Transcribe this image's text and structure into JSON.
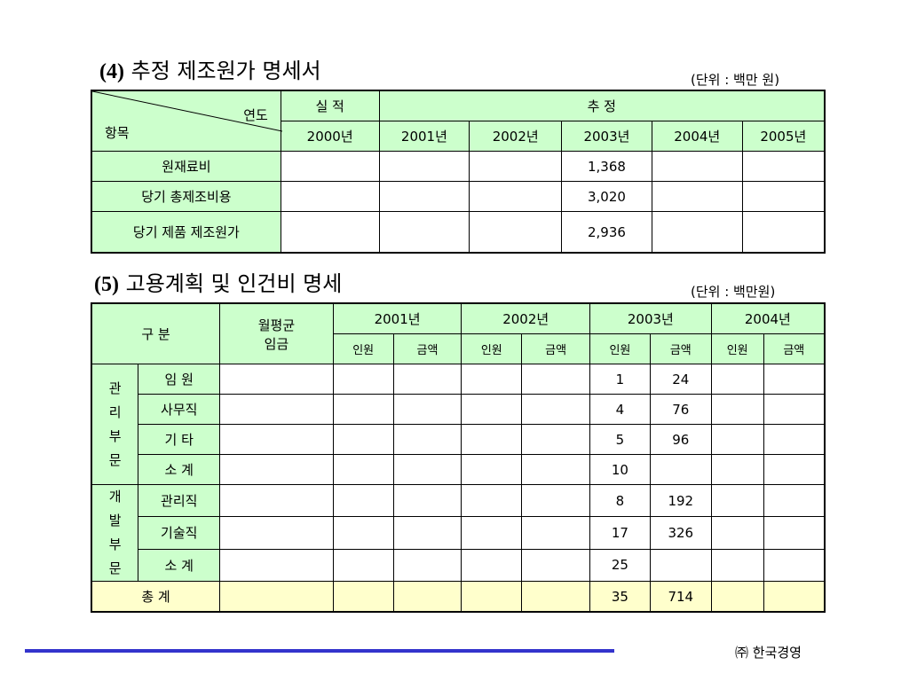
{
  "section4": {
    "num": "(4)",
    "title": "추정 제조원가 명세서",
    "unit": "(단위 : 백만 원)",
    "corner_top": "연도",
    "corner_bottom": "항목",
    "group_actual": "실 적",
    "group_estimate": "추 정",
    "years": [
      "2000년",
      "2001년",
      "2002년",
      "2003년",
      "2004년",
      "2005년"
    ],
    "rows": [
      {
        "label": "원재료비",
        "values": [
          "",
          "",
          "",
          "1,368",
          "",
          ""
        ]
      },
      {
        "label": "당기 총제조비용",
        "values": [
          "",
          "",
          "",
          "3,020",
          "",
          ""
        ]
      },
      {
        "label": "당기 제품 제조원가",
        "values": [
          "",
          "",
          "",
          "2,936",
          "",
          ""
        ]
      }
    ]
  },
  "section5": {
    "num": "(5)",
    "title": "고용계획 및 인건비 명세",
    "unit": "(단위 : 백만원)",
    "col_category": "구 분",
    "col_wage_line1": "월평균",
    "col_wage_line2": "임금",
    "years": [
      "2001년",
      "2002년",
      "2003년",
      "2004년"
    ],
    "sub_headcount": "인원",
    "sub_amount": "금액",
    "group_admin": [
      "관",
      "리",
      "부",
      "문"
    ],
    "group_dev": [
      "개",
      "발",
      "부",
      "문"
    ],
    "rows": [
      {
        "label": "임 원",
        "wage": "",
        "cells": [
          "",
          "",
          "",
          "",
          "1",
          "24",
          "",
          ""
        ]
      },
      {
        "label": "사무직",
        "wage": "",
        "cells": [
          "",
          "",
          "",
          "",
          "4",
          "76",
          "",
          ""
        ]
      },
      {
        "label": "기 타",
        "wage": "",
        "cells": [
          "",
          "",
          "",
          "",
          "5",
          "96",
          "",
          ""
        ]
      },
      {
        "label": "소 계",
        "wage": "",
        "cells": [
          "",
          "",
          "",
          "",
          "10",
          "",
          "",
          ""
        ]
      },
      {
        "label": "관리직",
        "wage": "",
        "cells": [
          "",
          "",
          "",
          "",
          "8",
          "192",
          "",
          ""
        ]
      },
      {
        "label": "기술직",
        "wage": "",
        "cells": [
          "",
          "",
          "",
          "",
          "17",
          "326",
          "",
          ""
        ]
      },
      {
        "label": "소 계",
        "wage": "",
        "cells": [
          "",
          "",
          "",
          "",
          "25",
          "",
          "",
          ""
        ]
      }
    ],
    "total": {
      "label": "총 계",
      "wage": "",
      "cells": [
        "",
        "",
        "",
        "",
        "35",
        "714",
        "",
        ""
      ]
    }
  },
  "footer": {
    "company": "㈜ 한국경영",
    "line_color": "#3333cc"
  },
  "colors": {
    "header_bg": "#ccffcc",
    "total_bg": "#ffffcc"
  }
}
